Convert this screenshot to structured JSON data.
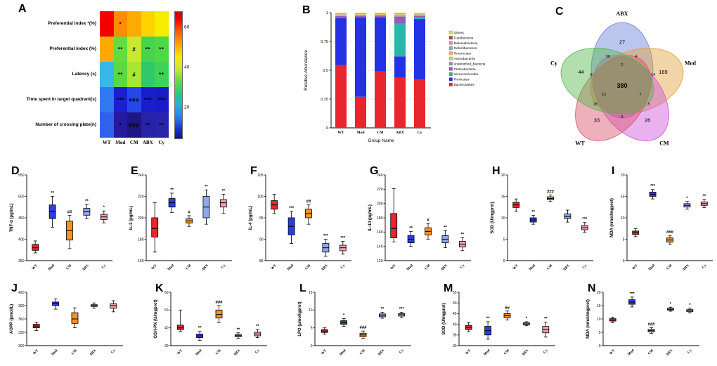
{
  "figure": {
    "panels": [
      "A",
      "B",
      "C",
      "D",
      "E",
      "F",
      "G",
      "H",
      "I",
      "J",
      "K",
      "L",
      "M",
      "N"
    ]
  },
  "groups": {
    "labels": [
      "WT",
      "Mod",
      "CM",
      "ABX",
      "Cy"
    ],
    "colors": [
      "#e8262d",
      "#2d3de0",
      "#f59324",
      "#8fa8e8",
      "#f2a0a8"
    ]
  },
  "chart_data": [
    {
      "id": "A",
      "type": "heatmap",
      "rows": [
        "Preferential index *(%)",
        "Preferential index (%)",
        "Latency (s)",
        "Time spent in target quadrant(s)",
        "Number of crossing plate(n)"
      ],
      "columns": [
        "WT",
        "Mod",
        "CM",
        "ABX",
        "Cy"
      ],
      "cell_colors": [
        [
          "#f40000",
          "#ff8c00",
          "#ffaa00",
          "#ffd300",
          "#f6ec00"
        ],
        [
          "#ffa800",
          "#62dc3e",
          "#c6ea2e",
          "#46d44e",
          "#4ed848"
        ],
        [
          "#38b8e8",
          "#5ada42",
          "#a8e634",
          "#2fc96a",
          "#3ed356"
        ],
        [
          "#2f7af0",
          "#1b1fd1",
          "#2549e8",
          "#1a1dcb",
          "#191bc6"
        ],
        [
          "#2f62ec",
          "#231a9e",
          "#1d1684",
          "#2822a8",
          "#2a24ad"
        ]
      ],
      "annotations": [
        [
          "",
          "*",
          "",
          "",
          ""
        ],
        [
          "",
          "**",
          "#",
          "**",
          "**"
        ],
        [
          "",
          "**",
          "#",
          "",
          "**"
        ],
        [
          "",
          "***",
          "###",
          "***",
          "***"
        ],
        [
          "",
          "*",
          "###",
          "**",
          "**"
        ]
      ],
      "values_estimated": [
        [
          66,
          52,
          49,
          45,
          43
        ],
        [
          52,
          38,
          42,
          36,
          36
        ],
        [
          26,
          37,
          41,
          33,
          34
        ],
        [
          22,
          12,
          17,
          12,
          11
        ],
        [
          19,
          8,
          6,
          9,
          9
        ]
      ],
      "colorbar": {
        "ticks": [
          60,
          40,
          20
        ],
        "range_estimated": [
          5,
          68
        ]
      }
    },
    {
      "id": "B",
      "type": "bar",
      "stacked": true,
      "categories": [
        "WT",
        "Mod",
        "CM",
        "ABX",
        "Cy"
      ],
      "xlabel": "Group Name",
      "ylabel": "Relative Abundance",
      "ylim": [
        0,
        1
      ],
      "yticks": [
        0,
        0.25,
        0.5,
        0.75,
        1
      ],
      "legend_position": "right",
      "series": [
        {
          "name": "Others",
          "color": "#f7e11e",
          "values": [
            0.005,
            0.006,
            0.005,
            0.006,
            0.008
          ]
        },
        {
          "name": "Fusobacteria",
          "color": "#a65628",
          "values": [
            0.002,
            0.002,
            0.002,
            0.002,
            0.002
          ]
        },
        {
          "name": "Melainabacteria",
          "color": "#f781bf",
          "values": [
            0.003,
            0.002,
            0.002,
            0.002,
            0.002
          ]
        },
        {
          "name": "Deferribacteres",
          "color": "#80b1d3",
          "values": [
            0.004,
            0.003,
            0.003,
            0.003,
            0.003
          ]
        },
        {
          "name": "Tenericutes",
          "color": "#fdb462",
          "values": [
            0.005,
            0.004,
            0.004,
            0.004,
            0.004
          ]
        },
        {
          "name": "Actinobacteria",
          "color": "#b3de69",
          "values": [
            0.006,
            0.005,
            0.005,
            0.008,
            0.005
          ]
        },
        {
          "name": "unidentified_Bacteria",
          "color": "#999999",
          "values": [
            0.005,
            0.004,
            0.004,
            0.01,
            0.004
          ]
        },
        {
          "name": "Proteobacteria",
          "color": "#9b59b6",
          "values": [
            0.012,
            0.012,
            0.012,
            0.06,
            0.012
          ]
        },
        {
          "name": "Verrucomicrobia",
          "color": "#2ab7a9",
          "values": [
            0.003,
            0.002,
            0.003,
            0.285,
            0.015
          ]
        },
        {
          "name": "Firmicutes",
          "color": "#2432e3",
          "values": [
            0.41,
            0.69,
            0.47,
            0.185,
            0.525
          ]
        },
        {
          "name": "Bacteroidetes",
          "color": "#e8262d",
          "values": [
            0.545,
            0.27,
            0.49,
            0.435,
            0.42
          ]
        }
      ]
    },
    {
      "id": "C",
      "type": "venn",
      "sets": [
        {
          "name": "ABX",
          "color": "#6b7fd7",
          "unique": 27
        },
        {
          "name": "Mod",
          "color": "#e0a13a",
          "unique": 169
        },
        {
          "name": "CM",
          "color": "#cf52d6",
          "unique": 26
        },
        {
          "name": "WT",
          "color": "#d9536b",
          "unique": 33
        },
        {
          "name": "Cy",
          "color": "#55b84a",
          "unique": 44
        }
      ],
      "core": 380,
      "intersections": [
        4,
        14,
        5,
        9,
        38,
        6,
        58,
        7,
        12,
        2
      ]
    },
    {
      "id": "D",
      "type": "box",
      "ylabel": "TNF-α (pg/mL)",
      "ylim": [
        350,
        550
      ],
      "yticks": [
        350,
        400,
        450,
        500,
        550
      ],
      "boxes": [
        [
          368,
          374,
          380,
          388,
          396
        ],
        [
          428,
          448,
          464,
          480,
          500
        ],
        [
          378,
          398,
          420,
          442,
          456
        ],
        [
          448,
          456,
          464,
          472,
          481
        ],
        [
          438,
          446,
          452,
          458,
          466
        ]
      ],
      "annotations": [
        "",
        "**",
        "##",
        "**",
        "*"
      ]
    },
    {
      "id": "E",
      "type": "box",
      "ylabel": "IL-2 (pg/mL)",
      "ylim": [
        160,
        240
      ],
      "yticks": [
        160,
        180,
        200,
        220,
        240
      ],
      "boxes": [
        [
          168,
          182,
          190,
          200,
          214
        ],
        [
          205,
          210,
          214,
          218,
          223
        ],
        [
          192,
          195,
          197,
          199,
          202
        ],
        [
          194,
          200,
          210,
          220,
          226
        ],
        [
          204,
          210,
          214,
          217,
          222
        ]
      ],
      "annotations": [
        "",
        "**",
        "#",
        "**",
        "**"
      ]
    },
    {
      "id": "F",
      "type": "box",
      "ylabel": "IL-4 (pg/mL)",
      "ylim": [
        85,
        105
      ],
      "yticks": [
        85,
        90,
        95,
        100,
        105
      ],
      "boxes": [
        [
          96,
          97,
          98,
          99,
          100.5
        ],
        [
          89,
          91,
          93,
          95,
          96.5
        ],
        [
          93.5,
          95,
          96,
          97,
          98
        ],
        [
          86,
          87,
          88,
          89,
          90
        ],
        [
          86.5,
          87.3,
          88,
          88.6,
          89.5
        ]
      ],
      "annotations": [
        "",
        "***",
        "##",
        "***",
        "***"
      ]
    },
    {
      "id": "G",
      "type": "box",
      "ylabel": "IL-10 (pg/mL)",
      "ylim": [
        120,
        240
      ],
      "yticks": [
        120,
        140,
        160,
        180,
        200,
        220,
        240
      ],
      "boxes": [
        [
          146,
          152,
          165,
          186,
          221
        ],
        [
          140,
          145,
          150,
          155,
          161
        ],
        [
          150,
          156,
          161,
          166,
          172
        ],
        [
          138,
          145,
          150,
          155,
          162
        ],
        [
          134,
          139,
          143,
          147,
          152
        ]
      ],
      "annotations": [
        "",
        "**",
        "#",
        "**",
        "**"
      ]
    },
    {
      "id": "H",
      "type": "box",
      "ylabel": "SOD (U/mgprot)",
      "ylim": [
        0,
        20
      ],
      "yticks": [
        0,
        5,
        10,
        15,
        20
      ],
      "boxes": [
        [
          11.5,
          12.4,
          13,
          13.6,
          14.4
        ],
        [
          8.5,
          9,
          9.5,
          10,
          10.6
        ],
        [
          13.8,
          14.2,
          14.5,
          14.9,
          15.3
        ],
        [
          9,
          9.8,
          10.3,
          10.9,
          11.8
        ],
        [
          6.6,
          7.2,
          7.7,
          8.2,
          8.9
        ]
      ],
      "annotations": [
        "",
        "**",
        "###",
        "",
        "***"
      ]
    },
    {
      "id": "I",
      "type": "box",
      "ylabel": "MDA (nmol/mgprot)",
      "ylim": [
        0,
        20
      ],
      "yticks": [
        0,
        5,
        10,
        15,
        20
      ],
      "boxes": [
        [
          5.6,
          6.1,
          6.5,
          6.9,
          7.5
        ],
        [
          14.4,
          15,
          15.5,
          16,
          16.6
        ],
        [
          3.8,
          4.3,
          4.8,
          5.3,
          5.9
        ],
        [
          12,
          12.5,
          12.9,
          13.3,
          13.8
        ],
        [
          12.4,
          12.9,
          13.3,
          13.7,
          14.3
        ]
      ],
      "annotations": [
        "",
        "***",
        "###",
        "*",
        "**"
      ]
    },
    {
      "id": "J",
      "type": "box",
      "ylabel": "AOPP (pmol/L)",
      "ylim": [
        300,
        420
      ],
      "yticks": [
        300,
        330,
        360,
        390,
        420
      ],
      "boxes": [
        [
          334,
          340,
          344,
          348,
          353
        ],
        [
          382,
          390,
          394,
          398,
          405
        ],
        [
          340,
          350,
          360,
          374,
          385
        ],
        [
          384,
          388,
          390,
          392,
          396
        ],
        [
          376,
          384,
          390,
          394,
          401
        ]
      ],
      "annotations": [
        "",
        "",
        "",
        "",
        ""
      ]
    },
    {
      "id": "K",
      "type": "box",
      "ylabel": "GSH-PX (U/mgprot)",
      "ylim": [
        30,
        60
      ],
      "yticks": [
        30,
        40,
        50,
        60
      ],
      "boxes": [
        [
          38,
          39,
          40,
          41.5,
          50
        ],
        [
          33,
          34.5,
          35.5,
          36.5,
          38
        ],
        [
          43,
          45.5,
          47.5,
          50,
          52.5
        ],
        [
          34,
          35,
          35.6,
          36.2,
          37.2
        ],
        [
          34.5,
          35.5,
          36.5,
          37.5,
          39
        ]
      ],
      "annotations": [
        "",
        "**",
        "###",
        "**",
        "**"
      ]
    },
    {
      "id": "L",
      "type": "box",
      "ylabel": "LPO (μmol/gprot)",
      "ylim": [
        0,
        15
      ],
      "yticks": [
        0,
        5,
        10,
        15
      ],
      "boxes": [
        [
          3.2,
          3.7,
          4.1,
          4.5,
          5
        ],
        [
          5.4,
          6,
          6.5,
          7,
          7.6
        ],
        [
          2,
          2.5,
          3,
          3.5,
          4.1
        ],
        [
          7.7,
          8.1,
          8.5,
          8.9,
          9.4
        ],
        [
          7.9,
          8.3,
          8.7,
          9,
          9.4
        ]
      ],
      "annotations": [
        "",
        "*",
        "###",
        "**",
        "***"
      ]
    },
    {
      "id": "M",
      "type": "box",
      "ylabel": "SOD (U/mgprot)",
      "ylim": [
        30,
        55
      ],
      "yticks": [
        30,
        35,
        40,
        45,
        50,
        55
      ],
      "boxes": [
        [
          36.5,
          37.5,
          38.5,
          39.5,
          40.8
        ],
        [
          33,
          35,
          37,
          39,
          41.2
        ],
        [
          42,
          43,
          44,
          45,
          46.2
        ],
        [
          39.3,
          39.8,
          40.2,
          40.7,
          41.2
        ],
        [
          34,
          36,
          37.5,
          39,
          41
        ]
      ],
      "annotations": [
        "",
        "**",
        "##",
        "*",
        "**"
      ]
    },
    {
      "id": "N",
      "type": "box",
      "ylabel": "MDA (nmol/mgprot)",
      "ylim": [
        0,
        20
      ],
      "yticks": [
        0,
        5,
        10,
        15,
        20
      ],
      "boxes": [
        [
          8.6,
          9.2,
          9.6,
          10.1,
          10.7
        ],
        [
          14.5,
          15.5,
          16.3,
          17.2,
          18.2
        ],
        [
          4.6,
          5.1,
          5.6,
          6.1,
          6.7
        ],
        [
          12.9,
          13.3,
          13.6,
          14,
          14.4
        ],
        [
          12.3,
          12.7,
          13.1,
          13.5,
          14
        ]
      ],
      "annotations": [
        "",
        "***",
        "###",
        "*",
        "*"
      ]
    }
  ]
}
